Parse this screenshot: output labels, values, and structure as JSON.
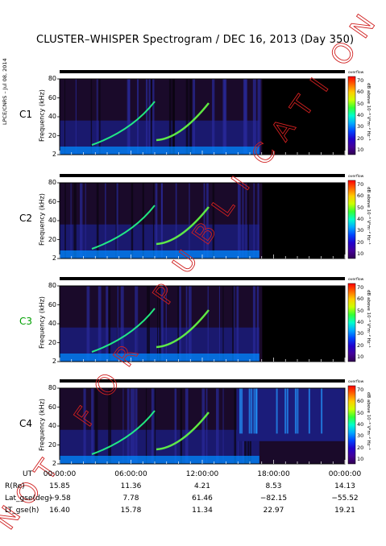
{
  "title": "CLUSTER–WHISPER Spectrogram / DEC 16, 2013 (Day 350)",
  "side_label": "LPCE/CNRS – Jul 08, 2014",
  "watermark": "NOT FOR PUBLICATION",
  "colorbar": {
    "header": "overflow",
    "label": "dB above 10⁻⁸ V²m⁻² Hz⁻¹",
    "ticks": [
      "70",
      "60",
      "50",
      "40",
      "30",
      "20",
      "10"
    ],
    "colors": [
      "#ff0000",
      "#ff6600",
      "#ffcc00",
      "#ccff00",
      "#33ff33",
      "#00ffcc",
      "#00aaff",
      "#0044ff",
      "#2200cc",
      "#440099",
      "#300050"
    ]
  },
  "panels": [
    {
      "name": "C1",
      "color": "#000000"
    },
    {
      "name": "C2",
      "color": "#000000"
    },
    {
      "name": "C3",
      "color": "#00a000"
    },
    {
      "name": "C4",
      "color": "#000000"
    }
  ],
  "chart_data": {
    "type": "heatmap",
    "ylabel": "Frequency (kHz)",
    "yticks": [
      "80",
      "60",
      "40",
      "20",
      "2"
    ],
    "ylim": [
      2,
      80
    ],
    "x_ticks": [
      "00:00:00",
      "06:00:00",
      "12:00:00",
      "18:00:00",
      "00:00:00"
    ],
    "ephemeris": [
      {
        "label": "UT",
        "values": [
          "00:00:00",
          "06:00:00",
          "12:00:00",
          "18:00:00",
          "00:00:00"
        ]
      },
      {
        "label": "R(Re)",
        "values": [
          "15.85",
          "11.36",
          "4.21",
          "8.53",
          "14.13"
        ]
      },
      {
        "label": "Lat_gse(deg)",
        "values": [
          "−9.58",
          "7.78",
          "61.46",
          "−82.15",
          "−55.52"
        ]
      },
      {
        "label": "LT_gse(h)",
        "values": [
          "16.40",
          "15.78",
          "11.34",
          "22.97",
          "19.21"
        ]
      }
    ]
  }
}
